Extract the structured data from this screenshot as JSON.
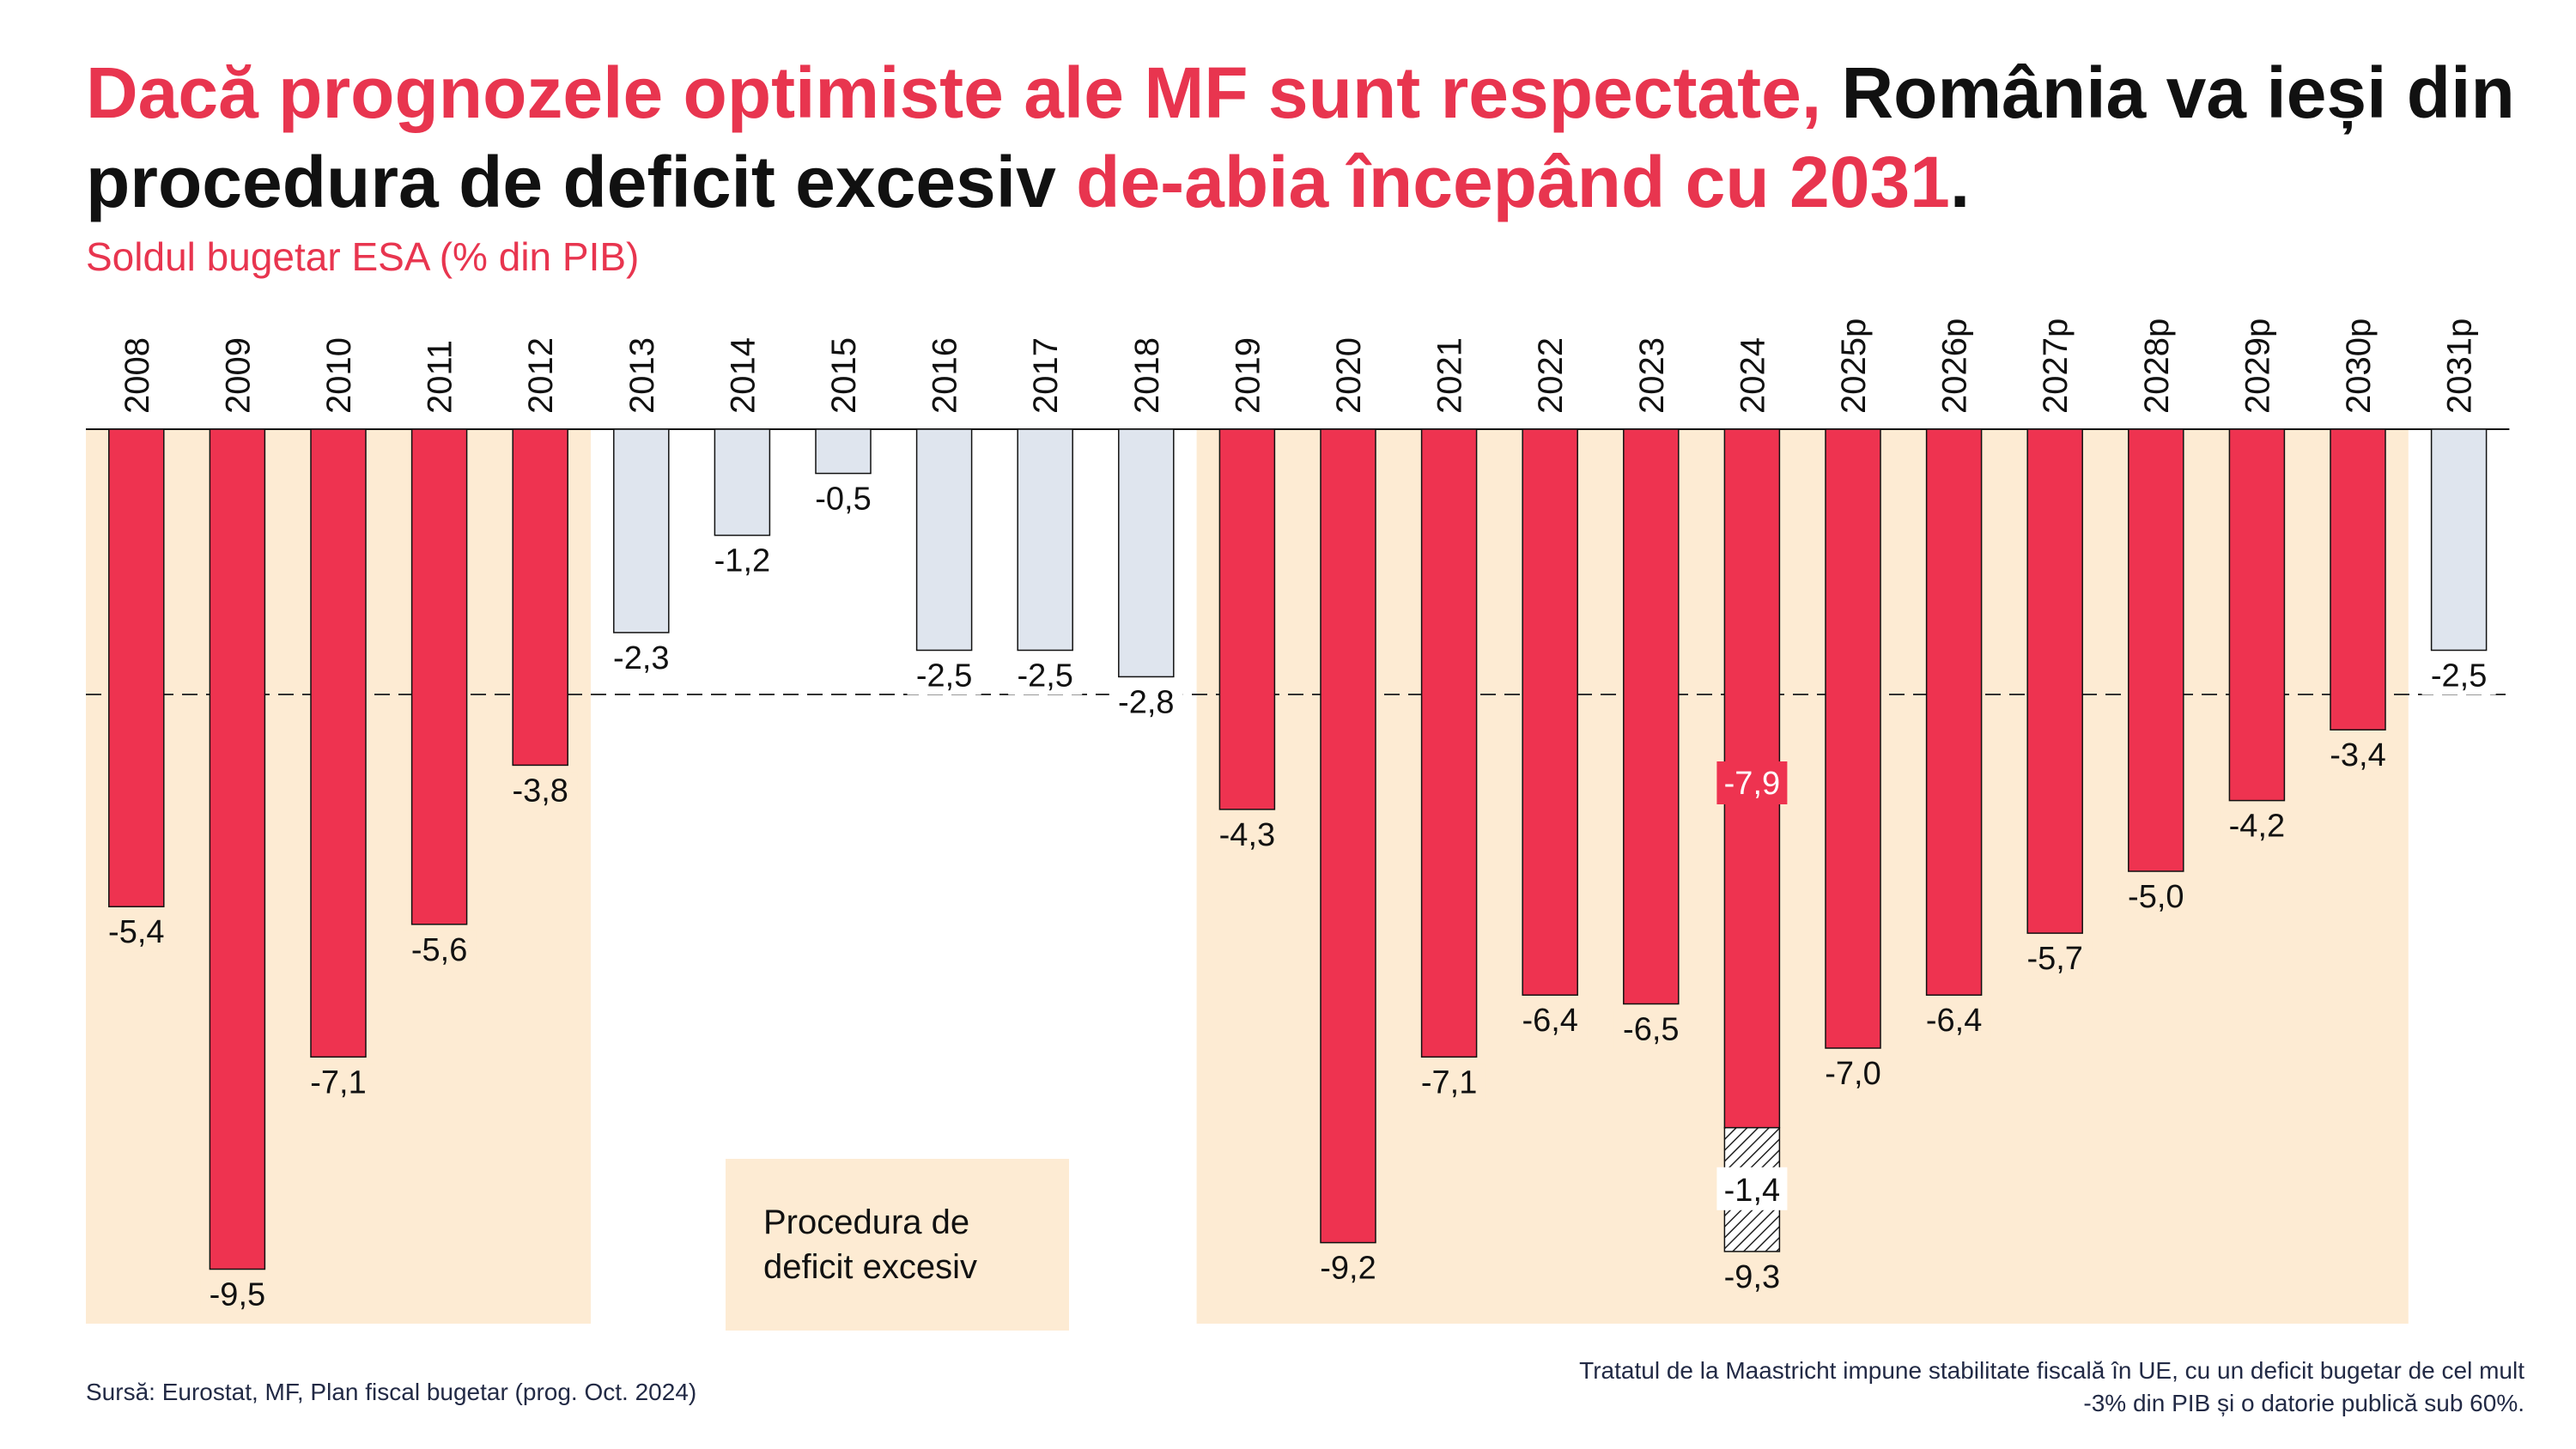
{
  "title": {
    "part1": "Dacă prognozele optimiste ale MF sunt respectate,",
    "part2": " România va ieși din procedura de deficit excesiv ",
    "part3": "de-abia începând cu 2031",
    "part4": "."
  },
  "subtitle": "Soldul bugetar ESA (% din PIB)",
  "legend_label_line1": "Procedura de",
  "legend_label_line2": "deficit excesiv",
  "source": "Sursă: Eurostat, MF, Plan fiscal bugetar (prog. Oct. 2024)",
  "note_line1": "Tratatul de la Maastricht impune stabilitate fiscală în UE, cu un deficit bugetar de cel mult",
  "note_line2": "-3% din PIB și o datorie publică sub 60%.",
  "colors": {
    "accent": "#e8354f",
    "bar_edp": "#ee3350",
    "bar_non_edp": "#dfe5ee",
    "edp_background": "#fdebd3"
  },
  "chart_data": {
    "type": "bar",
    "categories": [
      "2008",
      "2009",
      "2010",
      "2011",
      "2012",
      "2013",
      "2014",
      "2015",
      "2016",
      "2017",
      "2018",
      "2019",
      "2020",
      "2021",
      "2022",
      "2023",
      "2024",
      "2025p",
      "2026p",
      "2027p",
      "2028p",
      "2029p",
      "2030p",
      "2031p"
    ],
    "values": [
      -5.4,
      -9.5,
      -7.1,
      -5.6,
      -3.8,
      -2.3,
      -1.2,
      -0.5,
      -2.5,
      -2.5,
      -2.8,
      -4.3,
      -9.2,
      -7.1,
      -6.4,
      -6.5,
      -7.9,
      -7.0,
      -6.4,
      -5.7,
      -5.0,
      -4.2,
      -3.4,
      -2.5
    ],
    "labels": [
      "-5,4",
      "-9,5",
      "-7,1",
      "-5,6",
      "-3,8",
      "-2,3",
      "-1,2",
      "-0,5",
      "-2,5",
      "-2,5",
      "-2,8",
      "-4,3",
      "-9,2",
      "-7,1",
      "-6,4",
      "-6,5",
      "-7,9",
      "-7,0",
      "-6,4",
      "-5,7",
      "-5,0",
      "-4,2",
      "-3,4",
      "-2,5"
    ],
    "excessive_deficit_procedure": [
      true,
      true,
      true,
      true,
      true,
      false,
      false,
      false,
      false,
      false,
      false,
      true,
      true,
      true,
      true,
      true,
      true,
      true,
      true,
      true,
      true,
      true,
      true,
      false
    ],
    "edp_periods": [
      [
        "2008",
        "2012"
      ],
      [
        "2019",
        "2030p"
      ]
    ],
    "extra_segment": {
      "category": "2024",
      "value": -1.4,
      "label": "-1,4",
      "total": -9.3,
      "total_label": "-9,3",
      "pattern": "hatched"
    },
    "reference_line": {
      "value": -3.0,
      "style": "dashed"
    },
    "ylim": [
      -10,
      0
    ],
    "grid": false,
    "xlabel": "",
    "ylabel": ""
  }
}
